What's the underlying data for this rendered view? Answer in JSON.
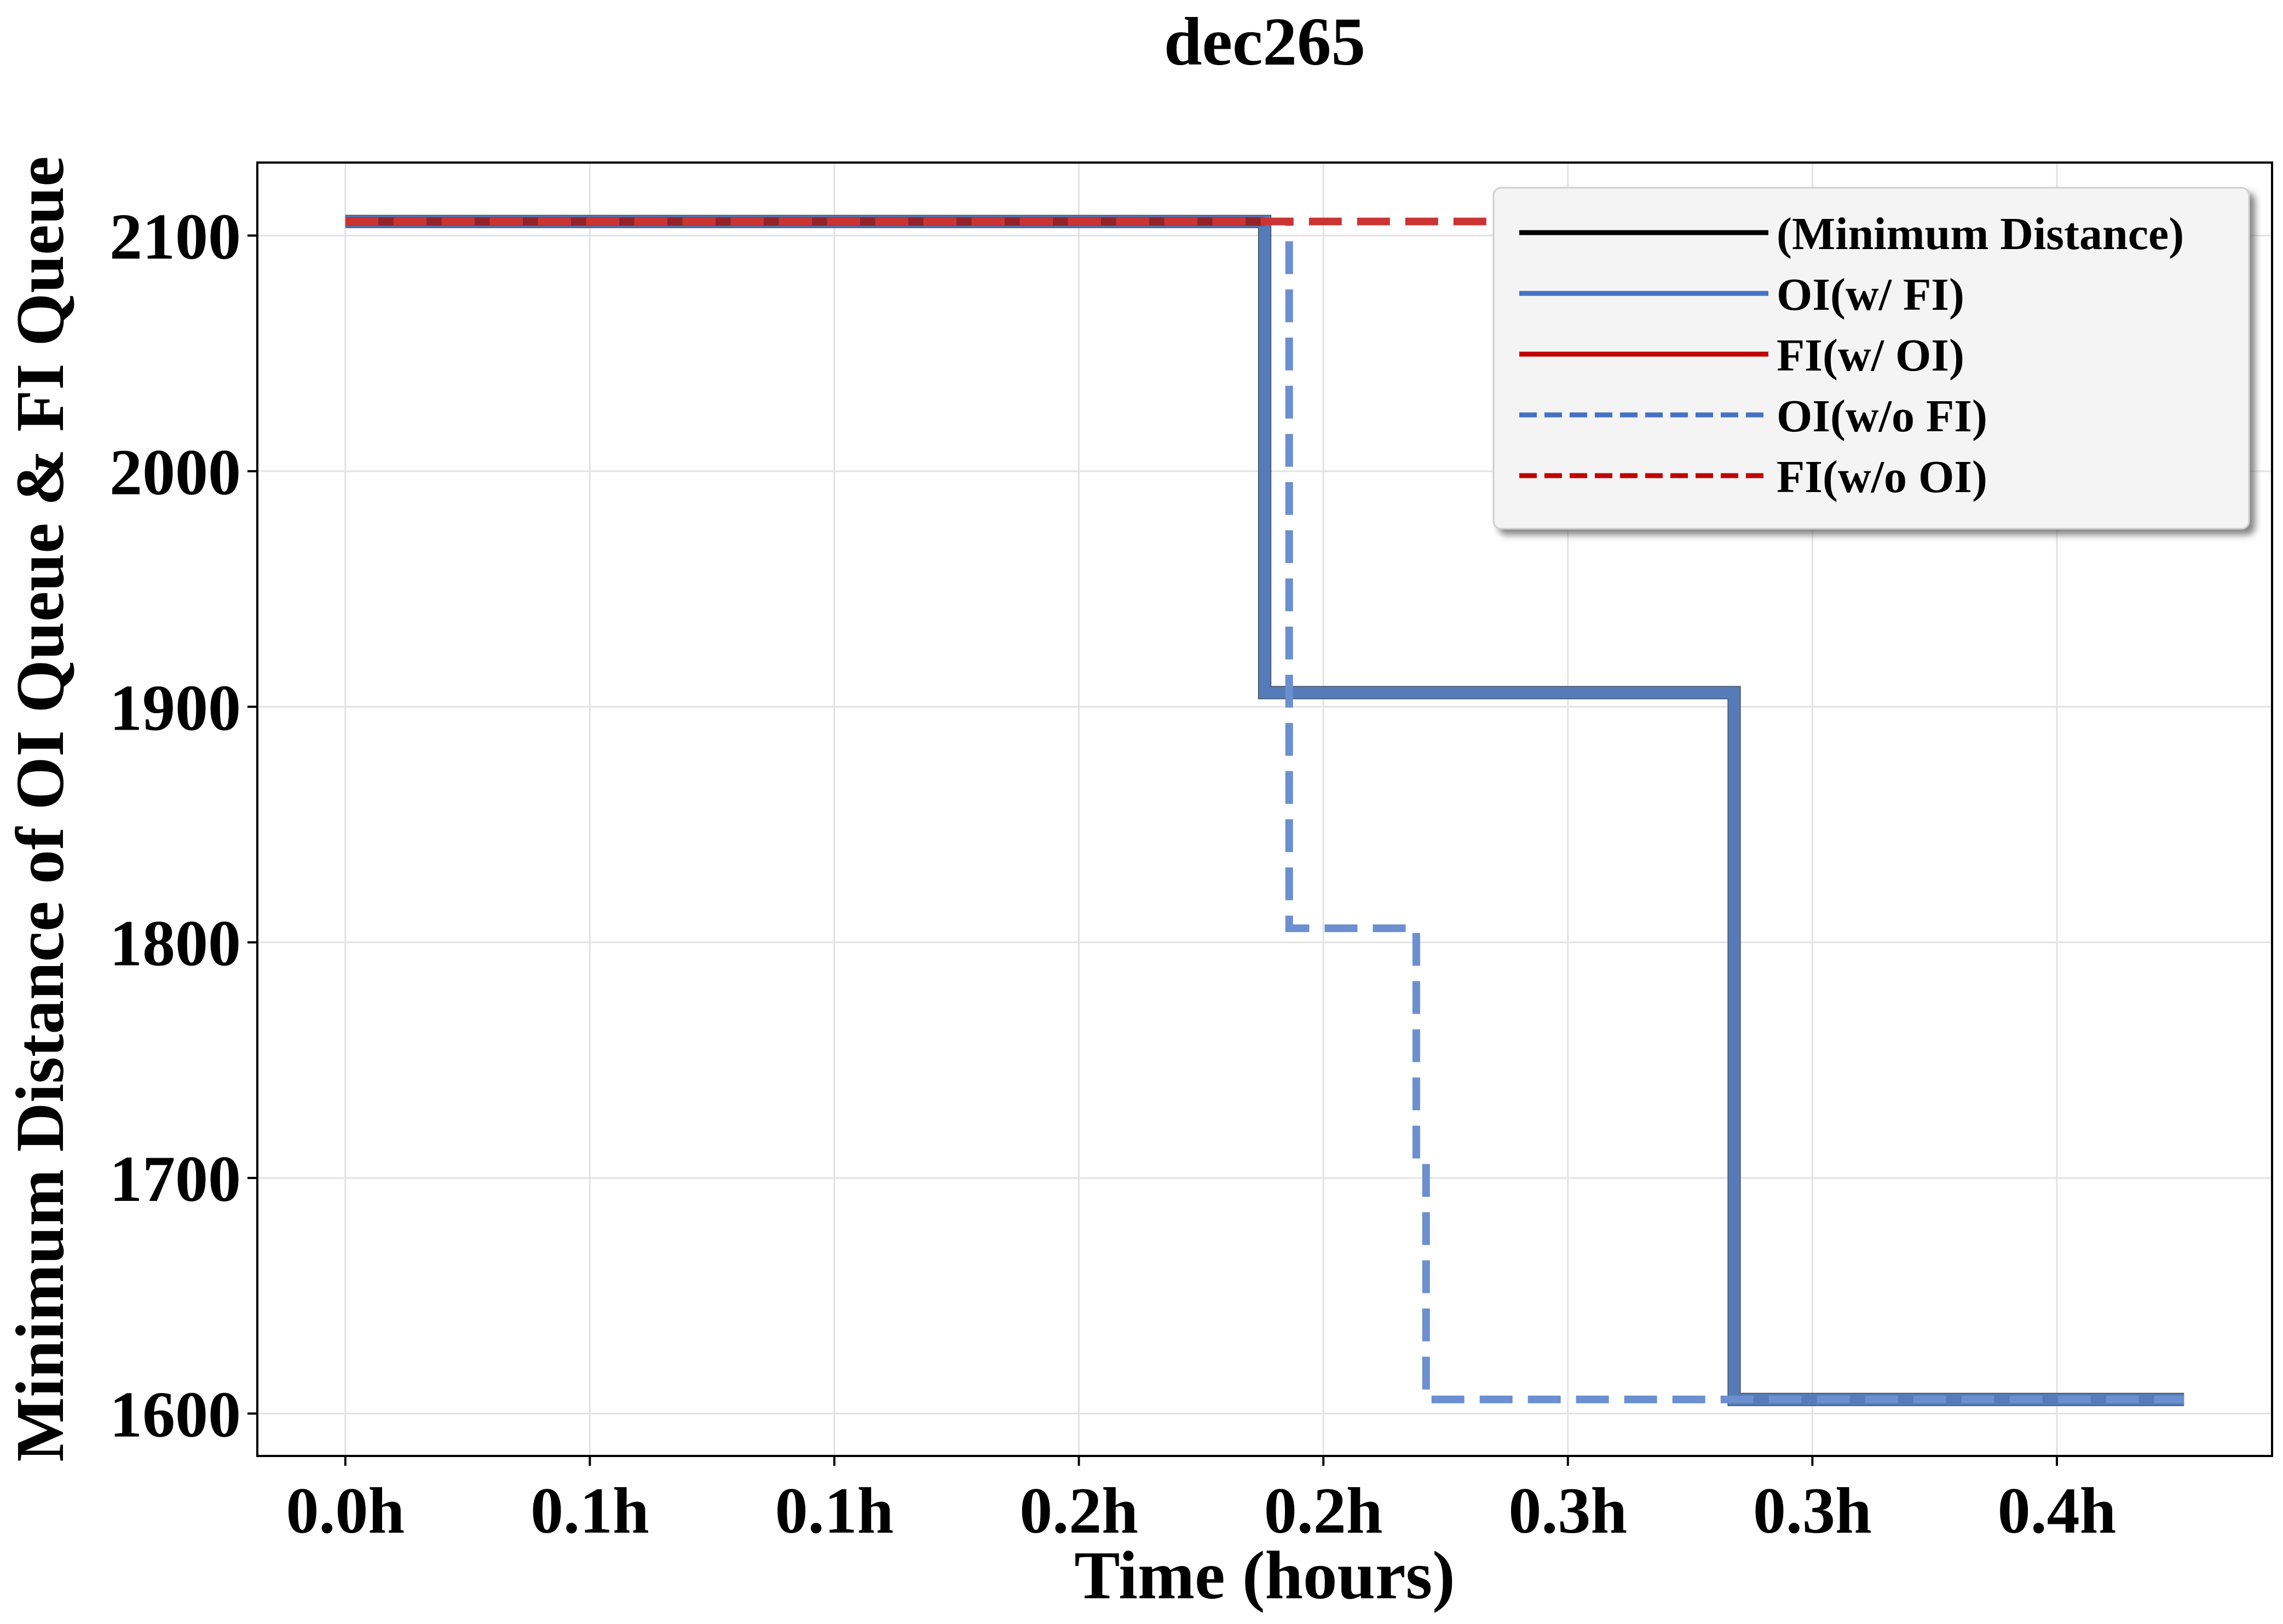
{
  "chart_data": {
    "type": "line",
    "title": "dec265",
    "xlabel": "Time (hours)",
    "ylabel": "Minimum Distance of OI Queue & FI Queue",
    "xlim": [
      -0.018,
      0.394
    ],
    "ylim": [
      1582,
      2131
    ],
    "x_ticks": [
      {
        "value": 0.0,
        "label": "0.0h"
      },
      {
        "value": 0.05,
        "label": "0.1h"
      },
      {
        "value": 0.1,
        "label": "0.1h"
      },
      {
        "value": 0.15,
        "label": "0.2h"
      },
      {
        "value": 0.2,
        "label": "0.2h"
      },
      {
        "value": 0.25,
        "label": "0.3h"
      },
      {
        "value": 0.3,
        "label": "0.3h"
      },
      {
        "value": 0.35,
        "label": "0.4h"
      }
    ],
    "y_ticks": [
      {
        "value": 1600,
        "label": "1600"
      },
      {
        "value": 1700,
        "label": "1700"
      },
      {
        "value": 1800,
        "label": "1800"
      },
      {
        "value": 1900,
        "label": "1900"
      },
      {
        "value": 2000,
        "label": "2000"
      },
      {
        "value": 2100,
        "label": "2100"
      }
    ],
    "grid": true,
    "legend_position": "top-right",
    "series": [
      {
        "name": "(Minimum Distance)",
        "color": "#2f2f2f",
        "style": "solid",
        "x": [
          0.0,
          0.188,
          0.188,
          0.284,
          0.284,
          0.376
        ],
        "y": [
          2106,
          2106,
          1906,
          1906,
          1606,
          1606
        ]
      },
      {
        "name": "OI(w/ FI)",
        "color": "#5a84c8",
        "style": "solid",
        "x": [
          0.0,
          0.188,
          0.188,
          0.284,
          0.284,
          0.376
        ],
        "y": [
          2106,
          2106,
          1906,
          1906,
          1606,
          1606
        ]
      },
      {
        "name": "FI(w/ OI)",
        "color": "#9a1a1a",
        "style": "solid",
        "x": [
          0.0,
          0.188
        ],
        "y": [
          2106,
          2106
        ]
      },
      {
        "name": "OI(w/o FI)",
        "color": "#6b8fcf",
        "style": "dashed",
        "x": [
          0.0,
          0.193,
          0.193,
          0.219,
          0.219,
          0.221,
          0.221,
          0.376
        ],
        "y": [
          2106,
          2106,
          1806,
          1806,
          1706,
          1706,
          1606,
          1606
        ]
      },
      {
        "name": "FI(w/o OI)",
        "color": "#cc3333",
        "style": "dashed",
        "x": [
          0.0,
          0.376
        ],
        "y": [
          2106,
          2106
        ]
      }
    ],
    "legend_colors": {
      "(Minimum Distance)": "#000000",
      "OI(w/ FI)": "#4472c4",
      "FI(w/ OI)": "#c00000",
      "OI(w/o FI)": "#4472c4",
      "FI(w/o OI)": "#c00000"
    }
  }
}
